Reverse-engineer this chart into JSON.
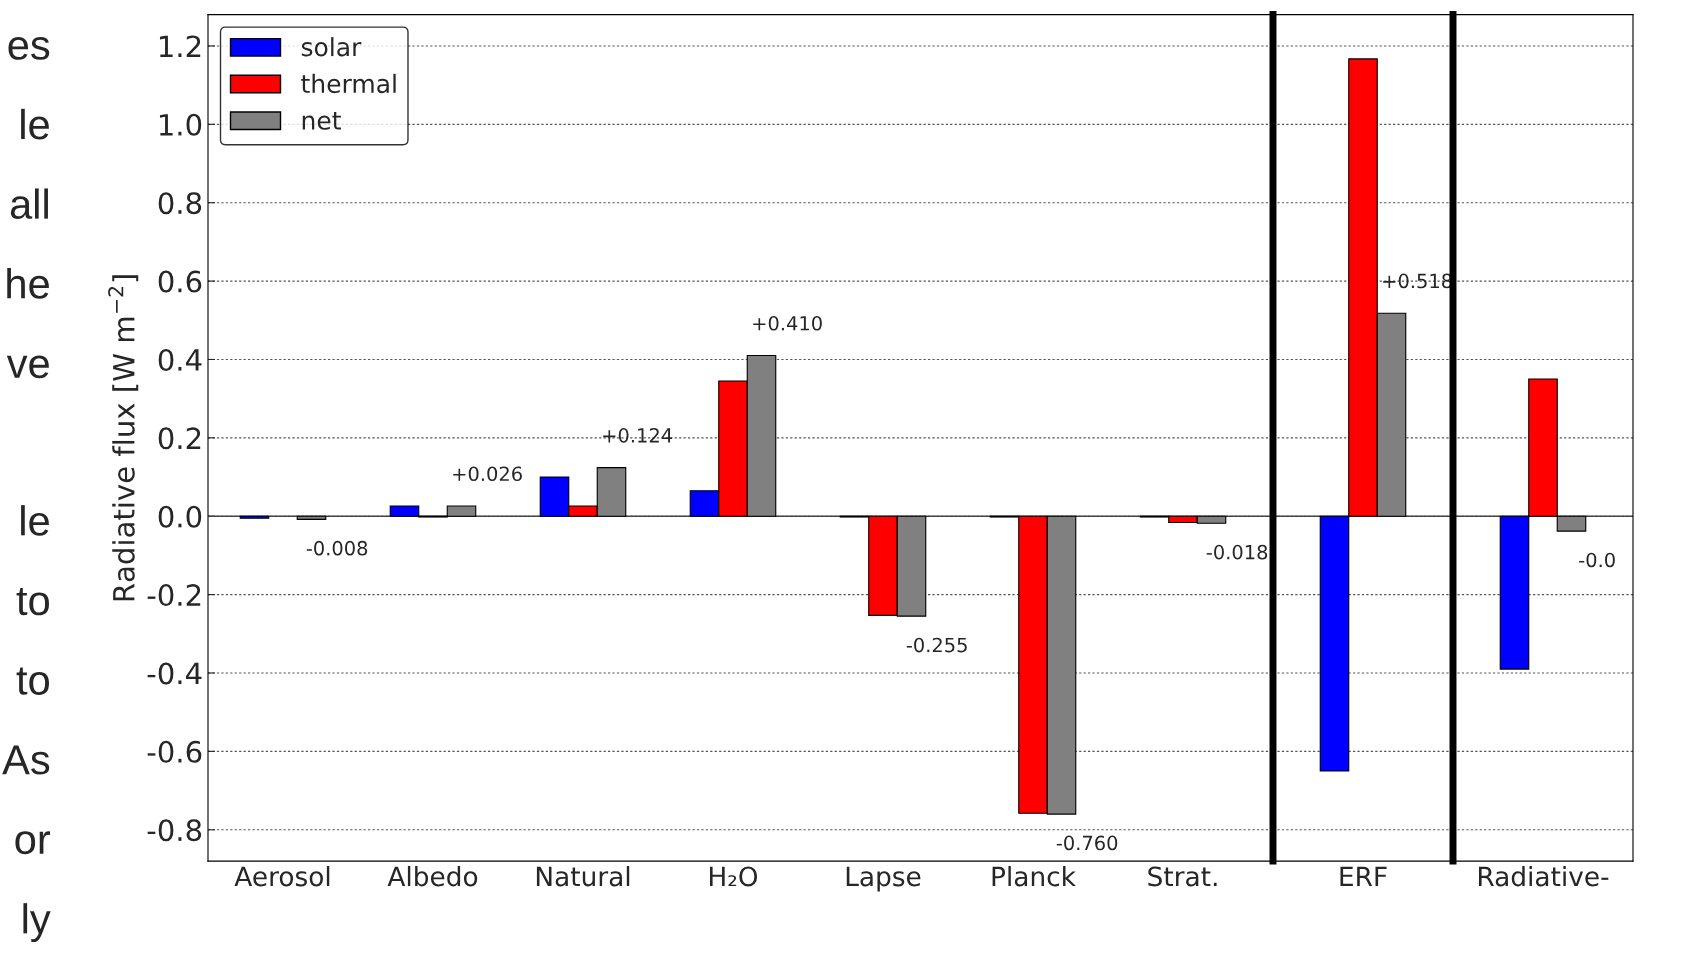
{
  "chart_data": [
    {
      "type": "bar",
      "ylabel": "Radiative flux [W m$^{−2}$]",
      "categories": [
        "Aerosol",
        "Albedo",
        "Natural",
        "H₂O",
        "Lapse",
        "Planck",
        "Strat."
      ],
      "series": [
        {
          "name": "solar",
          "color": "#0000ff",
          "values": [
            -0.005,
            0.026,
            0.1,
            0.065,
            -0.002,
            -0.002,
            -0.002
          ]
        },
        {
          "name": "thermal",
          "color": "#ff0000",
          "values": [
            null,
            -0.002,
            0.026,
            0.345,
            -0.253,
            -0.758,
            -0.016
          ]
        },
        {
          "name": "net",
          "color": "#808080",
          "values": [
            -0.008,
            0.026,
            0.124,
            0.41,
            -0.255,
            -0.76,
            -0.018
          ],
          "value_labels": [
            "-0.008",
            "+0.026",
            "+0.124",
            "+0.410",
            "-0.255",
            "-0.760",
            "-0.018"
          ]
        }
      ],
      "ylim": [
        -0.88,
        1.28
      ],
      "yticks": [
        {
          "value": -0.8,
          "label": "-0.8"
        },
        {
          "value": -0.6,
          "label": "-0.6"
        },
        {
          "value": -0.4,
          "label": "-0.4"
        },
        {
          "value": -0.2,
          "label": "-0.2"
        },
        {
          "value": 0.0,
          "label": "0.0"
        },
        {
          "value": 0.2,
          "label": "0.2"
        },
        {
          "value": 0.4,
          "label": "0.4"
        },
        {
          "value": 0.6,
          "label": "0.6"
        },
        {
          "value": 0.8,
          "label": "0.8"
        },
        {
          "value": 1.0,
          "label": "1.0"
        },
        {
          "value": 1.2,
          "label": "1.2"
        }
      ],
      "grid": "y",
      "legend": "top left",
      "annotations": [
        "es",
        "le",
        "all",
        "he",
        "ve",
        "le",
        "to",
        "to",
        "As",
        "or",
        "ly"
      ]
    },
    {
      "type": "bar",
      "categories": [
        "ERF"
      ],
      "series": [
        {
          "color": "#0000ff",
          "values": [
            -0.65
          ]
        },
        {
          "color": "#ff0000",
          "values": [
            1.167
          ]
        },
        {
          "color": "#808080",
          "values": [
            0.518
          ],
          "value_labels": [
            "+0.518"
          ]
        }
      ],
      "ylim": [
        -0.88,
        1.28
      ],
      "yticks": [
        {
          "value": -0.8,
          "label": null
        },
        {
          "value": -0.6,
          "label": null
        },
        {
          "value": -0.4,
          "label": null
        },
        {
          "value": -0.2,
          "label": null
        },
        {
          "value": 0.0,
          "label": null
        },
        {
          "value": 0.2,
          "label": null
        },
        {
          "value": 0.4,
          "label": null
        },
        {
          "value": 0.6,
          "label": null
        },
        {
          "value": 0.8,
          "label": null
        },
        {
          "value": 1.0,
          "label": null
        },
        {
          "value": 1.2,
          "label": null
        }
      ],
      "grid": "y",
      "tick_labels": "x"
    },
    {
      "type": "bar",
      "categories": [
        "Radiative-"
      ],
      "series": [
        {
          "color": "#0000ff",
          "values": [
            -0.39
          ]
        },
        {
          "color": "#ff0000",
          "values": [
            0.35
          ]
        },
        {
          "color": "#808080",
          "values": [
            -0.038
          ],
          "value_labels": [
            "-0.0"
          ]
        }
      ],
      "ylim": [
        -0.88,
        1.28
      ],
      "yticks": [
        {
          "value": -0.8,
          "label": null
        },
        {
          "value": -0.6,
          "label": null
        },
        {
          "value": -0.4,
          "label": null
        },
        {
          "value": -0.2,
          "label": null
        },
        {
          "value": 0.0,
          "label": null
        },
        {
          "value": 0.2,
          "label": null
        },
        {
          "value": 0.4,
          "label": null
        },
        {
          "value": 0.6,
          "label": null
        },
        {
          "value": 0.8,
          "label": null
        },
        {
          "value": 1.0,
          "label": null
        },
        {
          "value": 1.2,
          "label": null
        }
      ],
      "grid": "y",
      "tick_labels": "x"
    }
  ]
}
